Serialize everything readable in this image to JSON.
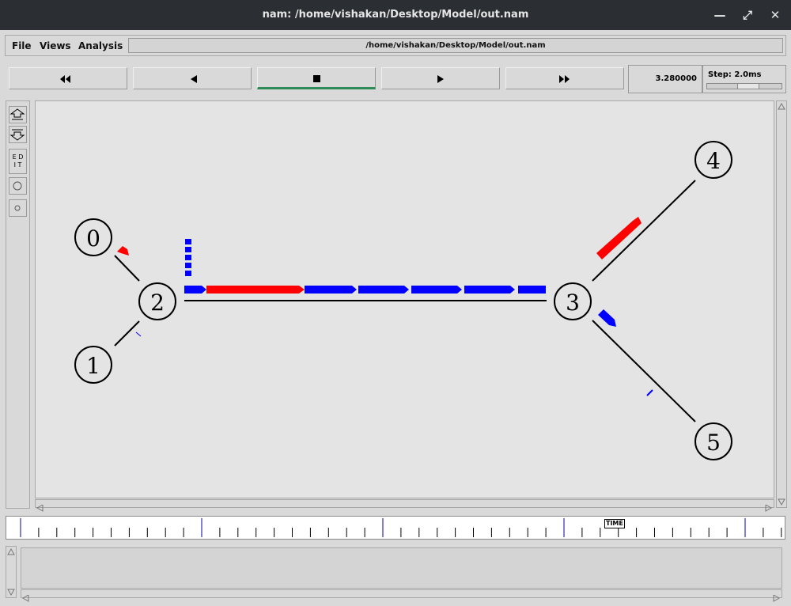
{
  "window": {
    "title": "nam: /home/vishakan/Desktop/Model/out.nam"
  },
  "menu": {
    "file": "File",
    "views": "Views",
    "analysis": "Analysis",
    "path": "/home/vishakan/Desktop/Model/out.nam"
  },
  "controls": {
    "time": "3.280000",
    "step_label": "Step: 2.0ms"
  },
  "tools": {
    "edit_label_1": "E D",
    "edit_label_2": "I T"
  },
  "timeline": {
    "marker": "TIME"
  },
  "network": {
    "nodes": [
      {
        "id": "0",
        "label": "0"
      },
      {
        "id": "1",
        "label": "1"
      },
      {
        "id": "2",
        "label": "2"
      },
      {
        "id": "3",
        "label": "3"
      },
      {
        "id": "4",
        "label": "4"
      },
      {
        "id": "5",
        "label": "5"
      }
    ],
    "colors": {
      "blue_flow": "#0000ff",
      "red_flow": "#ff0000",
      "link": "#000000"
    }
  }
}
